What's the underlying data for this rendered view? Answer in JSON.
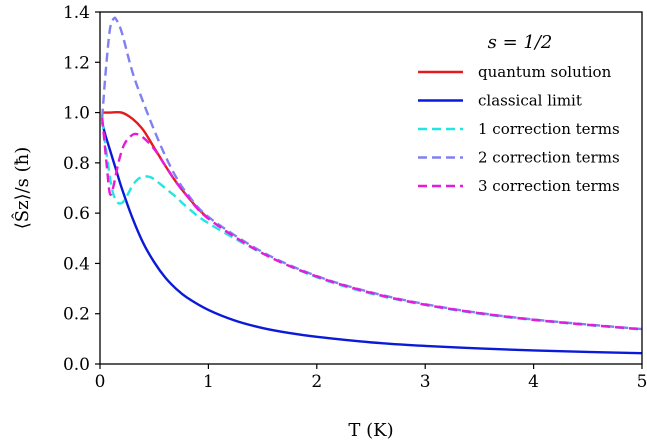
{
  "chart_data": {
    "type": "line",
    "xlabel": "T (K)",
    "ylabel": "⟨Ŝz⟩/s (ħ)",
    "xlim": [
      0,
      5
    ],
    "ylim": [
      0,
      1.4
    ],
    "xticks": [
      0,
      1,
      2,
      3,
      4,
      5
    ],
    "xtick_labels": [
      "0",
      "1",
      "2",
      "3",
      "4",
      "5"
    ],
    "yticks": [
      0.0,
      0.2,
      0.4,
      0.6,
      0.8,
      1.0,
      1.2,
      1.4
    ],
    "ytick_labels": [
      "0.0",
      "0.2",
      "0.4",
      "0.6",
      "0.8",
      "1.0",
      "1.2",
      "1.4"
    ],
    "grid": false,
    "legend_title": "s = 1/2",
    "legend_position": "top-right",
    "series": [
      {
        "name": "quantum solution",
        "color": "#e41a1c",
        "dash": "solid",
        "points": [
          [
            0.02,
            1.0
          ],
          [
            0.1,
            1.0
          ],
          [
            0.2,
            1.0
          ],
          [
            0.3,
            0.975
          ],
          [
            0.4,
            0.93
          ],
          [
            0.5,
            0.86
          ],
          [
            0.6,
            0.79
          ],
          [
            0.7,
            0.725
          ],
          [
            0.8,
            0.67
          ],
          [
            0.9,
            0.62
          ],
          [
            1.0,
            0.578
          ]
        ]
      },
      {
        "name": "classical limit",
        "color": "#0b1ad8",
        "dash": "solid",
        "points": [
          [
            0.02,
            0.96
          ],
          [
            0.05,
            0.91
          ],
          [
            0.1,
            0.84
          ],
          [
            0.15,
            0.77
          ],
          [
            0.2,
            0.7
          ],
          [
            0.3,
            0.58
          ],
          [
            0.4,
            0.48
          ],
          [
            0.5,
            0.405
          ],
          [
            0.6,
            0.345
          ],
          [
            0.7,
            0.3
          ],
          [
            0.8,
            0.265
          ],
          [
            1.0,
            0.215
          ],
          [
            1.25,
            0.172
          ],
          [
            1.5,
            0.143
          ],
          [
            1.75,
            0.123
          ],
          [
            2.0,
            0.108
          ],
          [
            2.5,
            0.086
          ],
          [
            3.0,
            0.072
          ],
          [
            3.5,
            0.062
          ],
          [
            4.0,
            0.054
          ],
          [
            4.5,
            0.048
          ],
          [
            5.0,
            0.043
          ]
        ]
      },
      {
        "name": "1 correction terms",
        "color": "#22e6e6",
        "dash": "dashed",
        "points": [
          [
            0.02,
            0.97
          ],
          [
            0.1,
            0.72
          ],
          [
            0.15,
            0.65
          ],
          [
            0.2,
            0.64
          ],
          [
            0.25,
            0.67
          ],
          [
            0.3,
            0.71
          ],
          [
            0.35,
            0.735
          ],
          [
            0.4,
            0.745
          ],
          [
            0.45,
            0.745
          ],
          [
            0.5,
            0.735
          ],
          [
            0.6,
            0.7
          ],
          [
            0.7,
            0.665
          ],
          [
            0.8,
            0.625
          ],
          [
            1.0,
            0.56
          ],
          [
            1.5,
            0.44
          ],
          [
            2.0,
            0.345
          ],
          [
            2.5,
            0.28
          ],
          [
            3.0,
            0.235
          ],
          [
            3.5,
            0.2
          ],
          [
            4.0,
            0.175
          ],
          [
            4.5,
            0.155
          ],
          [
            5.0,
            0.137
          ]
        ]
      },
      {
        "name": "2 correction terms",
        "color": "#8080f0",
        "dash": "dashed",
        "points": [
          [
            0.02,
            0.98
          ],
          [
            0.05,
            1.15
          ],
          [
            0.08,
            1.29
          ],
          [
            0.1,
            1.35
          ],
          [
            0.13,
            1.375
          ],
          [
            0.15,
            1.37
          ],
          [
            0.2,
            1.32
          ],
          [
            0.3,
            1.16
          ],
          [
            0.4,
            1.04
          ],
          [
            0.5,
            0.93
          ],
          [
            0.6,
            0.83
          ],
          [
            0.7,
            0.745
          ],
          [
            0.8,
            0.68
          ],
          [
            1.0,
            0.585
          ],
          [
            1.5,
            0.445
          ],
          [
            2.0,
            0.35
          ],
          [
            2.5,
            0.285
          ],
          [
            3.0,
            0.238
          ],
          [
            3.5,
            0.203
          ],
          [
            4.0,
            0.177
          ],
          [
            4.5,
            0.157
          ],
          [
            5.0,
            0.139
          ]
        ]
      },
      {
        "name": "3 correction terms",
        "color": "#e61ad8",
        "dash": "dashed",
        "points": [
          [
            0.02,
            0.98
          ],
          [
            0.06,
            0.8
          ],
          [
            0.09,
            0.68
          ],
          [
            0.12,
            0.7
          ],
          [
            0.17,
            0.8
          ],
          [
            0.22,
            0.87
          ],
          [
            0.28,
            0.905
          ],
          [
            0.33,
            0.915
          ],
          [
            0.4,
            0.9
          ],
          [
            0.5,
            0.855
          ],
          [
            0.6,
            0.79
          ],
          [
            0.7,
            0.725
          ],
          [
            0.8,
            0.67
          ],
          [
            1.0,
            0.578
          ],
          [
            1.5,
            0.44
          ],
          [
            2.0,
            0.348
          ],
          [
            2.5,
            0.283
          ],
          [
            3.0,
            0.236
          ],
          [
            3.5,
            0.202
          ],
          [
            4.0,
            0.176
          ],
          [
            4.5,
            0.156
          ],
          [
            5.0,
            0.138
          ]
        ]
      }
    ]
  }
}
